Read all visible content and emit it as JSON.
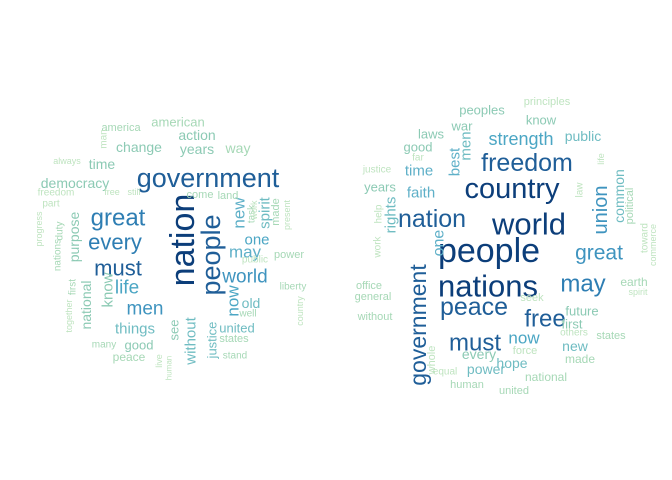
{
  "clouds": [
    {
      "words": [
        {
          "text": "government",
          "color": "#1f5e98"
        },
        {
          "text": "nation",
          "color": "#0c3e7a"
        },
        {
          "text": "people",
          "color": "#1f5e98"
        },
        {
          "text": "great",
          "color": "#2e7eb3"
        },
        {
          "text": "every",
          "color": "#2e7eb3"
        },
        {
          "text": "must",
          "color": "#1f5e98"
        },
        {
          "text": "life",
          "color": "#4ba6c4"
        },
        {
          "text": "men",
          "color": "#3f94bf"
        },
        {
          "text": "world",
          "color": "#3f94bf"
        },
        {
          "text": "may",
          "color": "#5fb0c8"
        },
        {
          "text": "new",
          "color": "#5fb0c8"
        },
        {
          "text": "one",
          "color": "#4ba6c4"
        },
        {
          "text": "now",
          "color": "#4ba6c4"
        },
        {
          "text": "spirit",
          "color": "#6fbcc2"
        },
        {
          "text": "old",
          "color": "#6fbcc2"
        },
        {
          "text": "united",
          "color": "#6fbcc2"
        },
        {
          "text": "things",
          "color": "#6fbcc2"
        },
        {
          "text": "good",
          "color": "#8ccab4"
        },
        {
          "text": "see",
          "color": "#8ccab4"
        },
        {
          "text": "without",
          "color": "#6fbcc2"
        },
        {
          "text": "justice",
          "color": "#6fbcc2"
        },
        {
          "text": "know",
          "color": "#8ccab4"
        },
        {
          "text": "purpose",
          "color": "#8ccab4"
        },
        {
          "text": "national",
          "color": "#8ccab4"
        },
        {
          "text": "democracy",
          "color": "#8ccab4"
        },
        {
          "text": "time",
          "color": "#8ccab4"
        },
        {
          "text": "change",
          "color": "#8ccab4"
        },
        {
          "text": "years",
          "color": "#8ccab4"
        },
        {
          "text": "action",
          "color": "#8ccab4"
        },
        {
          "text": "way",
          "color": "#a6d8b6"
        },
        {
          "text": "american",
          "color": "#a6d8b6"
        },
        {
          "text": "america",
          "color": "#a6d8b6"
        },
        {
          "text": "man",
          "color": "#bfe4c0"
        },
        {
          "text": "always",
          "color": "#bfe4c0"
        },
        {
          "text": "freedom",
          "color": "#bfe4c0"
        },
        {
          "text": "part",
          "color": "#bfe4c0"
        },
        {
          "text": "progress",
          "color": "#bfe4c0"
        },
        {
          "text": "nations",
          "color": "#a6d8b6"
        },
        {
          "text": "duty",
          "color": "#a6d8b6"
        },
        {
          "text": "first",
          "color": "#a6d8b6"
        },
        {
          "text": "together",
          "color": "#bfe4c0"
        },
        {
          "text": "many",
          "color": "#a6d8b6"
        },
        {
          "text": "peace",
          "color": "#a6d8b6"
        },
        {
          "text": "free",
          "color": "#bfe4c0"
        },
        {
          "text": "still",
          "color": "#bfe4c0"
        },
        {
          "text": "come",
          "color": "#a6d8b6"
        },
        {
          "text": "land",
          "color": "#a6d8b6"
        },
        {
          "text": "task",
          "color": "#a6d8b6"
        },
        {
          "text": "work",
          "color": "#bfe4c0"
        },
        {
          "text": "made",
          "color": "#a6d8b6"
        },
        {
          "text": "present",
          "color": "#bfe4c0"
        },
        {
          "text": "power",
          "color": "#a6d8b6"
        },
        {
          "text": "public",
          "color": "#bfe4c0"
        },
        {
          "text": "liberty",
          "color": "#a6d8b6"
        },
        {
          "text": "well",
          "color": "#a6d8b6"
        },
        {
          "text": "country",
          "color": "#bfe4c0"
        },
        {
          "text": "states",
          "color": "#a6d8b6"
        },
        {
          "text": "stand",
          "color": "#a6d8b6"
        },
        {
          "text": "live",
          "color": "#bfe4c0"
        },
        {
          "text": "human",
          "color": "#bfe4c0"
        }
      ]
    },
    {
      "words": [
        {
          "text": "people",
          "color": "#0c3e7a"
        },
        {
          "text": "nations",
          "color": "#0c3e7a"
        },
        {
          "text": "world",
          "color": "#0c3e7a"
        },
        {
          "text": "country",
          "color": "#0c3e7a"
        },
        {
          "text": "freedom",
          "color": "#1f5e98"
        },
        {
          "text": "nation",
          "color": "#1f5e98"
        },
        {
          "text": "peace",
          "color": "#1f5e98"
        },
        {
          "text": "government",
          "color": "#1f5e98"
        },
        {
          "text": "free",
          "color": "#1f5e98"
        },
        {
          "text": "must",
          "color": "#1f5e98"
        },
        {
          "text": "may",
          "color": "#2e7eb3"
        },
        {
          "text": "great",
          "color": "#3f94bf"
        },
        {
          "text": "union",
          "color": "#3f94bf"
        },
        {
          "text": "strength",
          "color": "#4ba6c4"
        },
        {
          "text": "now",
          "color": "#4ba6c4"
        },
        {
          "text": "one",
          "color": "#5fb0c8"
        },
        {
          "text": "best",
          "color": "#5fb0c8"
        },
        {
          "text": "time",
          "color": "#5fb0c8"
        },
        {
          "text": "faith",
          "color": "#5fb0c8"
        },
        {
          "text": "rights",
          "color": "#6fbcc2"
        },
        {
          "text": "men",
          "color": "#6fbcc2"
        },
        {
          "text": "common",
          "color": "#6fbcc2"
        },
        {
          "text": "public",
          "color": "#6fbcc2"
        },
        {
          "text": "know",
          "color": "#8ccab4"
        },
        {
          "text": "peoples",
          "color": "#8ccab4"
        },
        {
          "text": "war",
          "color": "#8ccab4"
        },
        {
          "text": "laws",
          "color": "#8ccab4"
        },
        {
          "text": "good",
          "color": "#8ccab4"
        },
        {
          "text": "years",
          "color": "#8ccab4"
        },
        {
          "text": "hope",
          "color": "#6fbcc2"
        },
        {
          "text": "power",
          "color": "#6fbcc2"
        },
        {
          "text": "every",
          "color": "#8ccab4"
        },
        {
          "text": "new",
          "color": "#6fbcc2"
        },
        {
          "text": "future",
          "color": "#8ccab4"
        },
        {
          "text": "first",
          "color": "#8ccab4"
        },
        {
          "text": "made",
          "color": "#a6d8b6"
        },
        {
          "text": "political",
          "color": "#a6d8b6"
        },
        {
          "text": "principles",
          "color": "#bfe4c0"
        },
        {
          "text": "far",
          "color": "#bfe4c0"
        },
        {
          "text": "justice",
          "color": "#bfe4c0"
        },
        {
          "text": "work",
          "color": "#bfe4c0"
        },
        {
          "text": "help",
          "color": "#bfe4c0"
        },
        {
          "text": "office",
          "color": "#a6d8b6"
        },
        {
          "text": "general",
          "color": "#a6d8b6"
        },
        {
          "text": "without",
          "color": "#a6d8b6"
        },
        {
          "text": "whole",
          "color": "#bfe4c0"
        },
        {
          "text": "equal",
          "color": "#bfe4c0"
        },
        {
          "text": "human",
          "color": "#a6d8b6"
        },
        {
          "text": "united",
          "color": "#a6d8b6"
        },
        {
          "text": "national",
          "color": "#a6d8b6"
        },
        {
          "text": "force",
          "color": "#bfe4c0"
        },
        {
          "text": "seek",
          "color": "#bfe4c0"
        },
        {
          "text": "others",
          "color": "#bfe4c0"
        },
        {
          "text": "states",
          "color": "#a6d8b6"
        },
        {
          "text": "earth",
          "color": "#a6d8b6"
        },
        {
          "text": "spirit",
          "color": "#bfe4c0"
        },
        {
          "text": "toward",
          "color": "#bfe4c0"
        },
        {
          "text": "commerce",
          "color": "#bfe4c0"
        },
        {
          "text": "law",
          "color": "#bfe4c0"
        },
        {
          "text": "life",
          "color": "#bfe4c0"
        }
      ]
    }
  ]
}
